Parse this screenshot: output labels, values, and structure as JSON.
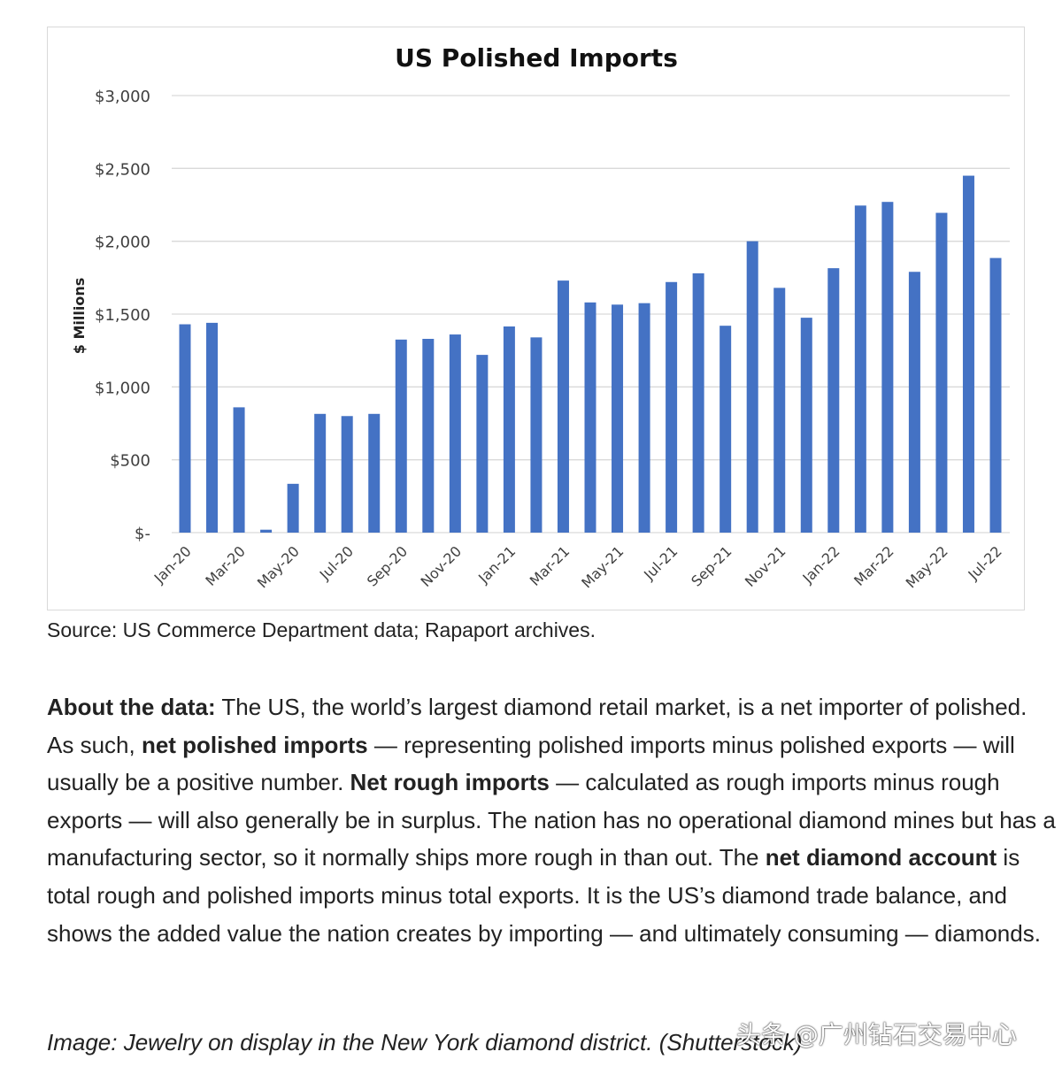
{
  "chart_data": {
    "type": "bar",
    "title": "US Polished Imports",
    "ylabel": "$ Millions",
    "xlabel": "",
    "ylim": [
      0,
      3000
    ],
    "y_ticks": [
      0,
      500,
      1000,
      1500,
      2000,
      2500,
      3000
    ],
    "y_tick_labels": [
      "$-",
      "$500",
      "$1,000",
      "$1,500",
      "$2,000",
      "$2,500",
      "$3,000"
    ],
    "grid": true,
    "bar_color": "#4472C4",
    "categories": [
      "Jan-20",
      "Feb-20",
      "Mar-20",
      "Apr-20",
      "May-20",
      "Jun-20",
      "Jul-20",
      "Aug-20",
      "Sep-20",
      "Oct-20",
      "Nov-20",
      "Dec-20",
      "Jan-21",
      "Feb-21",
      "Mar-21",
      "Apr-21",
      "May-21",
      "Jun-21",
      "Jul-21",
      "Aug-21",
      "Sep-21",
      "Oct-21",
      "Nov-21",
      "Dec-21",
      "Jan-22",
      "Feb-22",
      "Mar-22",
      "Apr-22",
      "May-22",
      "Jun-22",
      "Jul-22"
    ],
    "x_tick_labels": [
      "Jan-20",
      "Mar-20",
      "May-20",
      "Jul-20",
      "Sep-20",
      "Nov-20",
      "Jan-21",
      "Mar-21",
      "May-21",
      "Jul-21",
      "Sep-21",
      "Nov-21",
      "Jan-22",
      "Mar-22",
      "May-22",
      "Jul-22"
    ],
    "values": [
      1430,
      1440,
      860,
      20,
      335,
      815,
      800,
      815,
      1325,
      1330,
      1360,
      1220,
      1415,
      1340,
      1730,
      1580,
      1565,
      1575,
      1720,
      1780,
      1420,
      2000,
      1680,
      1475,
      1815,
      2245,
      2270,
      1790,
      2195,
      2450,
      1885
    ]
  },
  "source": "Source: US Commerce Department data; Rapaport archives.",
  "about": {
    "p1_bold": "About the data:",
    "p1": " The US, the world’s largest diamond retail market, is a net importer of polished. As such, ",
    "p2_bold": "net polished imports",
    "p2": " — representing polished imports minus polished exports — will usually be a positive number. ",
    "p3_bold": "Net rough imports",
    "p3": " — calculated as rough imports minus rough exports — will also generally be in surplus. The nation has no operational diamond mines but has a manufacturing sector, so it normally ships more rough in than out. The ",
    "p4_bold": "net diamond account",
    "p4": " is total rough and polished imports minus total exports. It is the US’s diamond trade balance, and shows the added value the nation creates by importing — and ultimately consuming — diamonds."
  },
  "caption": "Image: Jewelry on display in the New York diamond district. (Shutterstock)",
  "watermark": "头条 @广州钻石交易中心"
}
